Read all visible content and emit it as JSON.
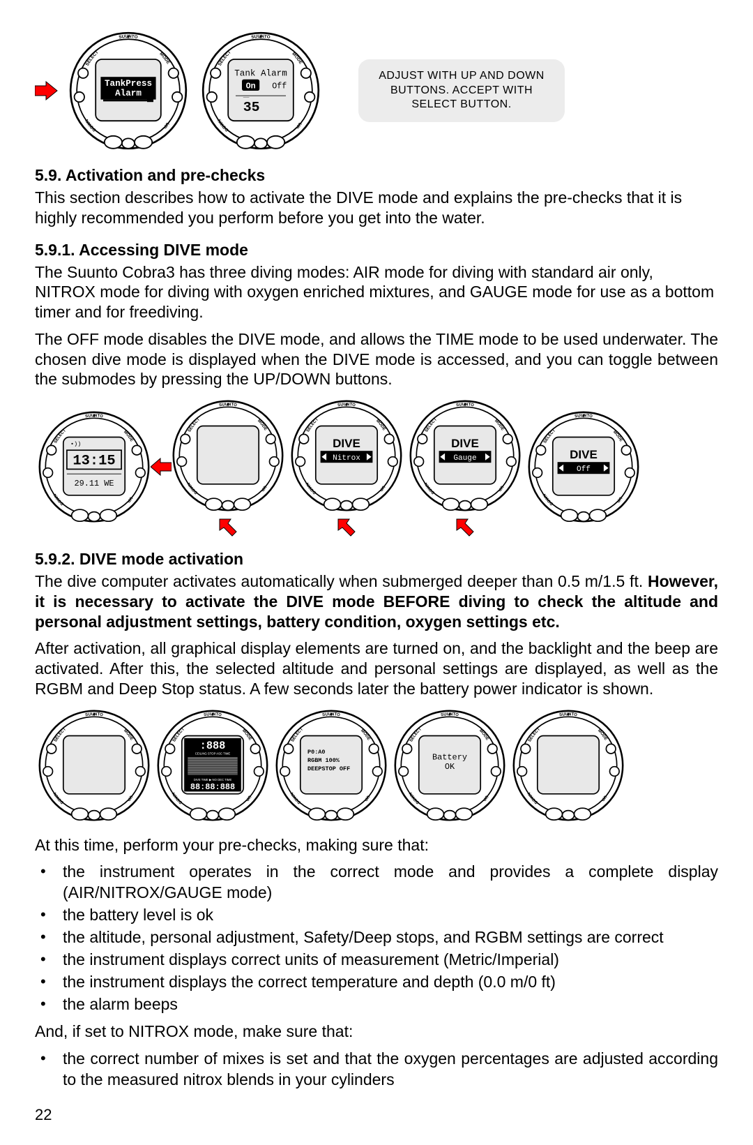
{
  "brand": "SUUNTO",
  "bezel": {
    "select": "SELECT",
    "mode": "MODE",
    "down": "DOWN",
    "up": "UP"
  },
  "colors": {
    "bg": "#ffffff",
    "text": "#000000",
    "bubble_bg": "#ececec",
    "screen_bg": "#e8e8e8",
    "screen_dark": "#000000",
    "arrow_red": "#ff0000",
    "arrow_stroke": "#000000"
  },
  "top_fig": {
    "watch1": {
      "line1": "TankPress",
      "line2": "Alarm"
    },
    "watch2": {
      "line1": "Tank Alarm",
      "on": "On",
      "off": "Off",
      "value": "35"
    },
    "annotation": "ADJUST WITH UP AND DOWN BUTTONS. ACCEPT WITH SELECT BUTTON."
  },
  "sec59": {
    "title": "5.9. Activation and pre-checks",
    "p1": "This section describes how to activate the DIVE mode and explains the pre-checks that it is highly recommended you perform before you get into the water."
  },
  "sec591": {
    "title": "5.9.1. Accessing DIVE mode",
    "p1": "The Suunto Cobra3 has three diving modes: AIR mode for diving with standard air only, NITROX mode for diving with oxygen enriched mixtures, and GAUGE mode for use as a bottom timer and for freediving.",
    "p2": "The OFF mode disables the DIVE mode, and allows the TIME mode to be used underwater. The chosen dive mode is displayed when the DIVE mode is accessed, and you can toggle between the submodes by pressing the UP/DOWN buttons.",
    "watches": [
      {
        "time": "13:15",
        "date": "29.11 WE"
      },
      {
        "blank": true
      },
      {
        "title": "DIVE",
        "mode": "Nitrox"
      },
      {
        "title": "DIVE",
        "mode": "Gauge"
      },
      {
        "title": "DIVE",
        "mode": "Off"
      }
    ]
  },
  "sec592": {
    "title": "5.9.2. DIVE mode activation",
    "p1_a": "The dive computer activates automatically when submerged deeper than 0.5 m/1.5 ft. ",
    "p1_bold": "However, it is necessary to activate the DIVE mode BEFORE diving to check the altitude and personal adjustment settings, battery condition, oxygen settings etc.",
    "p2": "After activation, all graphical display elements are turned on, and the backlight and the beep are activated. After this, the selected altitude and personal settings are displayed, as well as the RGBM and Deep Stop status. A few seconds later the battery power indicator is shown.",
    "watches": [
      {
        "blank": true
      },
      {
        "seg": "888",
        "label_top": "CEILING STOP ASC TIME",
        "seg_bottom": "88:88:888",
        "label_bottom": "DIVE TIME ▶ NO DEC TIME"
      },
      {
        "l1": "P0:A0",
        "l2": "RGBM 100%",
        "l3": "DEEPSTOP OFF"
      },
      {
        "l1": "Battery",
        "l2": "OK"
      },
      {
        "blank": true
      }
    ],
    "p3": "At this time, perform your pre-checks, making sure that:",
    "checks": [
      "the instrument operates in the correct mode and provides a complete display (AIR/NITROX/GAUGE mode)",
      "the battery level is ok",
      "the altitude, personal adjustment, Safety/Deep stops, and RGBM settings are correct",
      "the instrument displays correct units of measurement (Metric/Imperial)",
      "the instrument displays the correct temperature and depth (0.0 m/0 ft)",
      "the alarm beeps"
    ],
    "p4": "And, if set to NITROX mode, make sure that:",
    "checks2": [
      "the correct number of mixes is set and that the oxygen percentages are adjusted according to the measured nitrox blends in your cylinders"
    ]
  },
  "page_number": "22"
}
